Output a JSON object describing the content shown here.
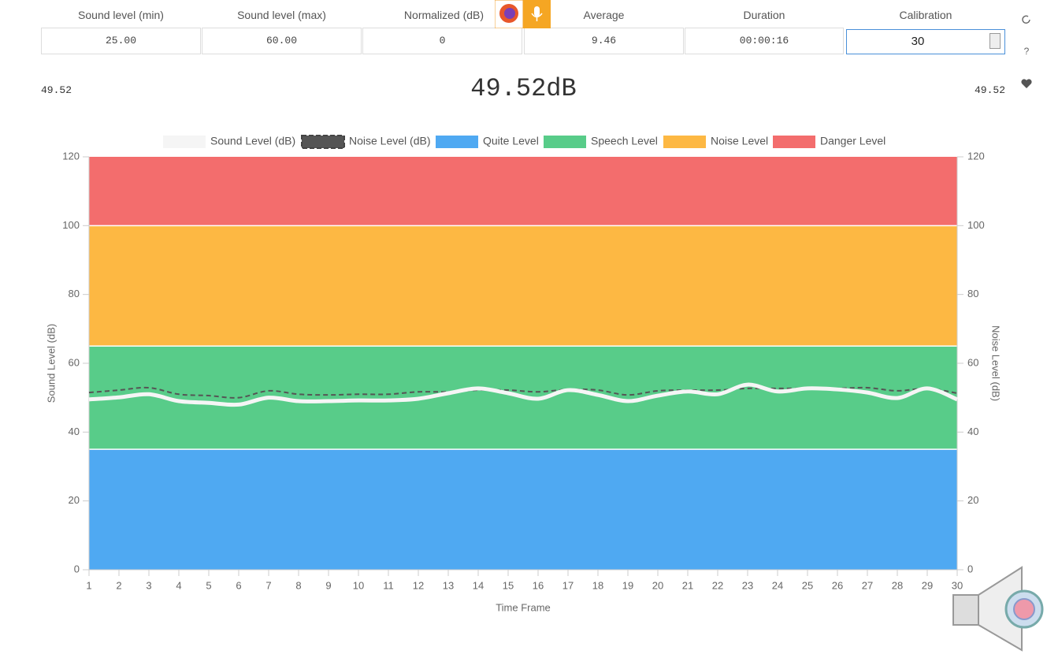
{
  "header": {
    "columns": [
      {
        "label": "Sound level (min)",
        "value": "25.00"
      },
      {
        "label": "Sound level (max)",
        "value": "60.00"
      },
      {
        "label": "Normalized (dB)",
        "value": "0"
      },
      {
        "label": "Average",
        "value": "9.46"
      },
      {
        "label": "Duration",
        "value": "00:00:16"
      },
      {
        "label": "Calibration",
        "value": "30"
      }
    ]
  },
  "readout": {
    "left": "49.52",
    "main": "49.52dB",
    "right": "49.52"
  },
  "side": {
    "help": "?"
  },
  "chart_data": {
    "type": "line",
    "x_label": "Time Frame",
    "y_label": "Sound Level (dB)",
    "y2_label": "Noise Level (dB)",
    "x": [
      1,
      2,
      3,
      4,
      5,
      6,
      7,
      8,
      9,
      10,
      11,
      12,
      13,
      14,
      15,
      16,
      17,
      18,
      19,
      20,
      21,
      22,
      23,
      24,
      25,
      26,
      27,
      28,
      29,
      30
    ],
    "xlim": [
      1,
      30
    ],
    "xticks": [
      1,
      2,
      3,
      4,
      5,
      6,
      7,
      8,
      9,
      10,
      11,
      12,
      13,
      14,
      15,
      16,
      17,
      18,
      19,
      20,
      21,
      22,
      23,
      24,
      25,
      26,
      27,
      28,
      29,
      30
    ],
    "ylim": [
      0,
      120
    ],
    "yticks": [
      0,
      20,
      40,
      60,
      80,
      100,
      120
    ],
    "y2lim": [
      0,
      120
    ],
    "y2ticks": [
      0,
      20,
      40,
      60,
      80,
      100,
      120
    ],
    "series": [
      {
        "name": "Sound Level (dB)",
        "color": "#f5f5f5",
        "values": [
          49.5,
          50.1,
          51,
          49,
          48.5,
          48,
          50,
          49,
          49,
          49.2,
          49.2,
          49.7,
          51.3,
          52.7,
          51.3,
          49.7,
          52.2,
          50.8,
          49,
          50.6,
          51.8,
          51,
          53.8,
          51.8,
          52.7,
          52.4,
          51.5,
          49.9,
          52.7,
          49.5
        ]
      },
      {
        "name": "Noise Level (dB)",
        "color": "#555555",
        "axis": "y2",
        "dashed": true,
        "values": [
          51.5,
          52.2,
          52.9,
          51,
          50.6,
          50,
          52,
          51,
          50.8,
          51,
          51,
          51.7,
          51.7,
          52.2,
          52.2,
          51.7,
          52.4,
          52.2,
          50.8,
          52,
          52.2,
          52.2,
          52.7,
          52.7,
          52.7,
          52.7,
          52.9,
          52,
          52.7,
          51.3
        ]
      }
    ],
    "bands": [
      {
        "name": "Quite Level",
        "color": "#4fa9f2",
        "from": 0,
        "to": 35
      },
      {
        "name": "Speech Level",
        "color": "#58cc89",
        "from": 35,
        "to": 65
      },
      {
        "name": "Noise Level",
        "color": "#fdb843",
        "from": 65,
        "to": 100
      },
      {
        "name": "Danger Level",
        "color": "#f36d6d",
        "from": 100,
        "to": 120
      }
    ]
  }
}
